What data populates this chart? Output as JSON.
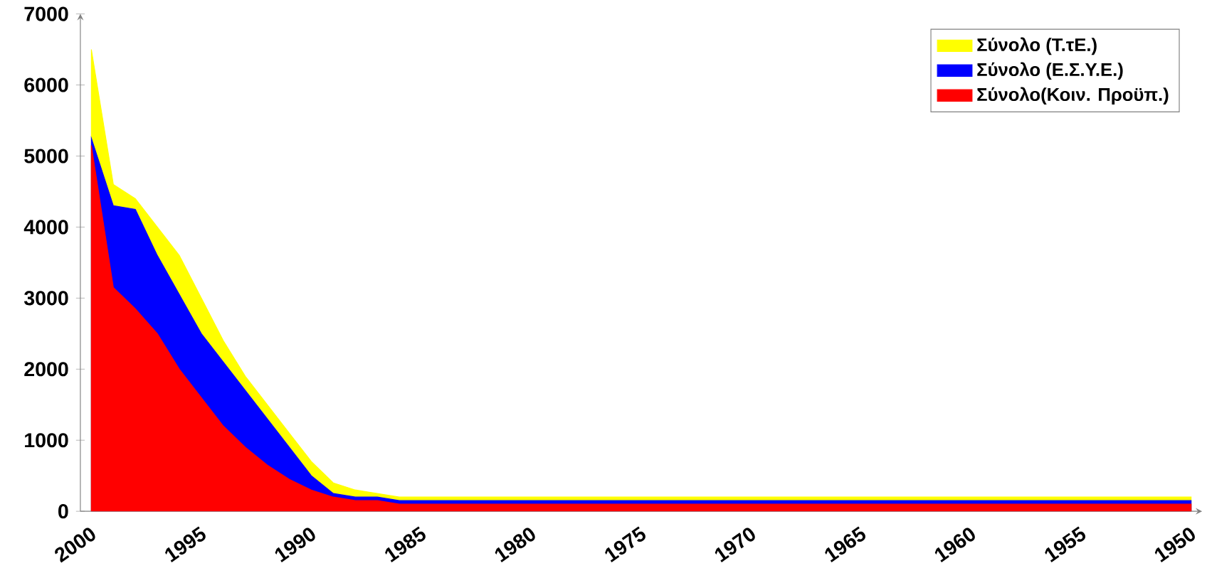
{
  "chart_data": {
    "type": "area",
    "categories": [
      "2000",
      null,
      null,
      null,
      null,
      "1995",
      null,
      null,
      null,
      null,
      "1990",
      null,
      null,
      null,
      null,
      "1985",
      null,
      null,
      null,
      null,
      "1980",
      null,
      null,
      null,
      null,
      "1975",
      null,
      null,
      null,
      null,
      "1970",
      null,
      null,
      null,
      null,
      "1965",
      null,
      null,
      null,
      null,
      "1960",
      null,
      null,
      null,
      null,
      "1955",
      null,
      null,
      null,
      null,
      "1950"
    ],
    "series": [
      {
        "name": "Σύνολο (Ε.Σ.Υ.Ε.)",
        "color": "#0000ff",
        "values": [
          5250,
          4300,
          4250,
          3600,
          3050,
          2500,
          2100,
          1700,
          1300,
          900,
          500,
          250,
          200,
          200,
          150,
          150,
          150,
          150,
          150,
          150,
          150,
          150,
          150,
          150,
          150,
          150,
          150,
          150,
          150,
          150,
          150,
          150,
          150,
          150,
          150,
          150,
          150,
          150,
          150,
          150,
          150,
          150,
          150,
          150,
          150,
          150,
          150,
          150,
          150,
          150,
          150
        ]
      },
      {
        "name": "Σύνολο(Κοιν. Προϋπ.)",
        "color": "#ff0000",
        "values": [
          5150,
          3150,
          2850,
          2500,
          2000,
          1600,
          1200,
          900,
          650,
          450,
          300,
          200,
          150,
          150,
          100,
          100,
          100,
          100,
          100,
          100,
          100,
          100,
          100,
          100,
          100,
          100,
          100,
          100,
          100,
          100,
          100,
          100,
          100,
          100,
          100,
          100,
          100,
          100,
          100,
          100,
          100,
          100,
          100,
          100,
          100,
          100,
          100,
          100,
          100,
          100,
          100
        ]
      },
      {
        "name": "Σύνολο (Τ.τΕ.)",
        "color": "#ffff00",
        "values": [
          6500,
          4600,
          4400,
          4000,
          3600,
          3000,
          2400,
          1900,
          1500,
          1100,
          700,
          400,
          300,
          250,
          200,
          200,
          200,
          200,
          200,
          200,
          200,
          200,
          200,
          200,
          200,
          200,
          200,
          200,
          200,
          200,
          200,
          200,
          200,
          200,
          200,
          200,
          200,
          200,
          200,
          200,
          200,
          200,
          200,
          200,
          200,
          200,
          200,
          200,
          200,
          200,
          200
        ]
      }
    ],
    "ylim": [
      0,
      7000
    ],
    "yticks": [
      0,
      1000,
      2000,
      3000,
      4000,
      5000,
      6000,
      7000
    ],
    "legend": "top right"
  }
}
